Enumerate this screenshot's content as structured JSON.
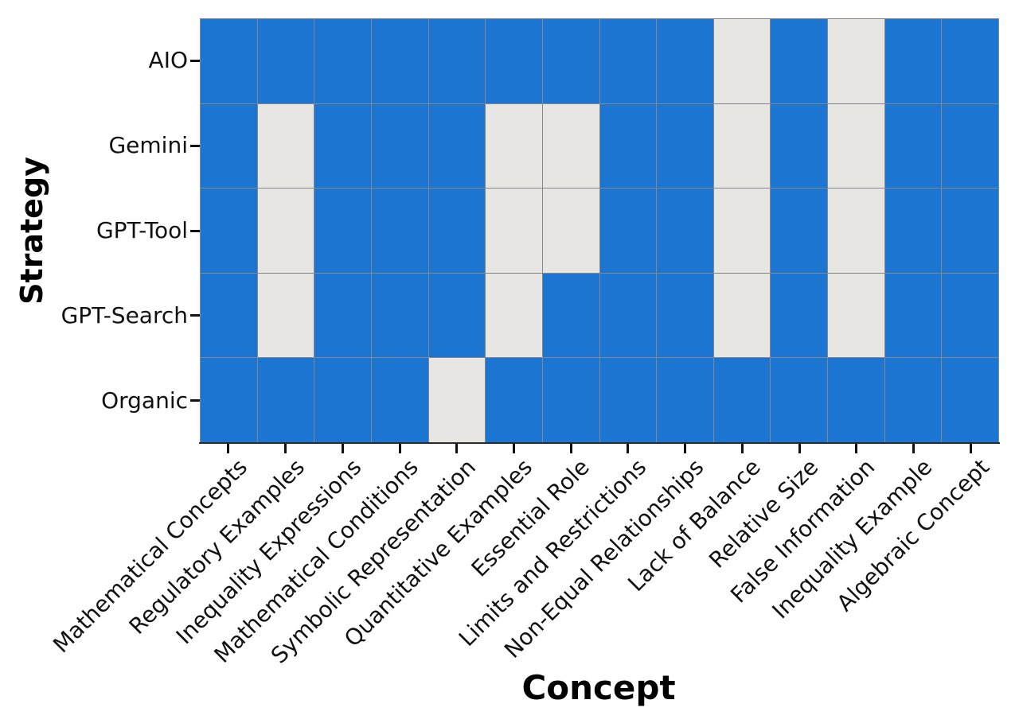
{
  "axes": {
    "x_title": "Concept",
    "y_title": "Strategy"
  },
  "chart_data": {
    "type": "heatmap",
    "title": "",
    "xlabel": "Concept",
    "ylabel": "Strategy",
    "x_categories": [
      "Mathematical Concepts",
      "Regulatory Examples",
      "Inequality Expressions",
      "Mathematical Conditions",
      "Symbolic Representation",
      "Quantitative Examples",
      "Essential Role",
      "Limits and Restrictions",
      "Non-Equal Relationships",
      "Lack of Balance",
      "Relative Size",
      "False Information",
      "Inequality Example",
      "Algebraic Concept"
    ],
    "y_categories": [
      "AIO",
      "Gemini",
      "GPT-Tool",
      "GPT-Search",
      "Organic"
    ],
    "matrix": [
      [
        1,
        1,
        1,
        1,
        1,
        1,
        1,
        1,
        1,
        0,
        1,
        0,
        1,
        1
      ],
      [
        1,
        0,
        1,
        1,
        1,
        0,
        0,
        1,
        1,
        0,
        1,
        0,
        1,
        1
      ],
      [
        1,
        0,
        1,
        1,
        1,
        0,
        0,
        1,
        1,
        0,
        1,
        0,
        1,
        1
      ],
      [
        1,
        0,
        1,
        1,
        1,
        0,
        1,
        1,
        1,
        0,
        1,
        0,
        1,
        1
      ],
      [
        1,
        1,
        1,
        1,
        0,
        1,
        1,
        1,
        1,
        1,
        1,
        1,
        1,
        1
      ]
    ],
    "value_colors": {
      "present": "#1c75d1",
      "absent": "#e8e6e3"
    },
    "gridline_color": "#85888c",
    "legend": "none",
    "grid": true
  }
}
